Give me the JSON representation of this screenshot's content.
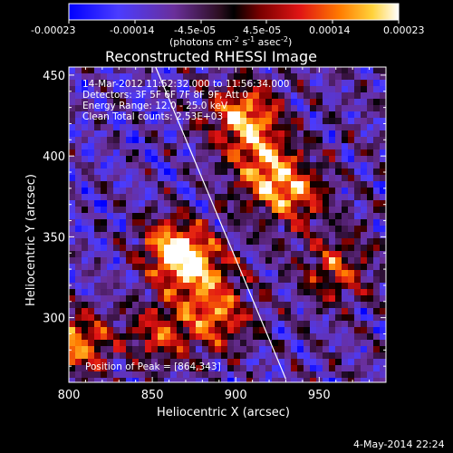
{
  "colorbar": {
    "ticks": [
      "-0.00023",
      "-0.00014",
      "-4.5e-05",
      "4.5e-05",
      "0.00014",
      "0.00023"
    ],
    "unit_main": "(photons cm",
    "unit_sup1": "-2",
    "unit_mid": " s",
    "unit_sup2": "-1",
    "unit_end": " asec",
    "unit_sup3": "-2",
    "unit_close": ")"
  },
  "chart_data": {
    "type": "heatmap",
    "title": "Reconstructed RHESSI Image",
    "xlabel": "Heliocentric X (arcsec)",
    "ylabel": "Heliocentric Y (arcsec)",
    "xlim": [
      800,
      990
    ],
    "ylim": [
      260,
      455
    ],
    "xticks": [
      800,
      850,
      900,
      950
    ],
    "yticks": [
      300,
      350,
      400,
      450
    ],
    "colorbar_range": [
      -0.00023,
      0.00023
    ],
    "colormap": [
      "#0000ff",
      "#7a3aff",
      "#6d2a7a",
      "#000000",
      "#c81414",
      "#ff6a00",
      "#ffd23a",
      "#ffffff"
    ],
    "limb_line": [
      [
        852,
        455
      ],
      [
        930,
        262
      ]
    ],
    "hot_regions": [
      {
        "x": 905,
        "y": 423,
        "intensity": 1.0
      },
      {
        "x": 918,
        "y": 392,
        "intensity": 0.8
      },
      {
        "x": 862,
        "y": 343,
        "intensity": 0.95
      },
      {
        "x": 878,
        "y": 330,
        "intensity": 0.85
      },
      {
        "x": 890,
        "y": 300,
        "intensity": 0.8
      },
      {
        "x": 805,
        "y": 285,
        "intensity": 0.9
      },
      {
        "x": 855,
        "y": 290,
        "intensity": 0.7
      },
      {
        "x": 935,
        "y": 375,
        "intensity": 0.7
      },
      {
        "x": 960,
        "y": 330,
        "intensity": 0.6
      }
    ]
  },
  "annotations": {
    "line1": "14-Mar-2012 11:52:32.000 to 11:56:34.000",
    "line2": "Detectors: 3F 5F 6F 7F 8F 9F, Att 0",
    "line3": "Energy Range: 12.0 - 25.0 keV",
    "line4": "Clean     Total counts: 2.53E+03",
    "peak": "Position of Peak = [864,343]"
  },
  "footer": {
    "date": "4-May-2014 22:24"
  }
}
